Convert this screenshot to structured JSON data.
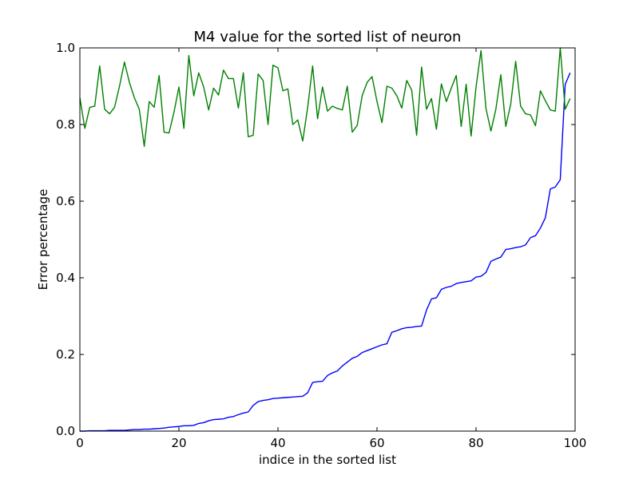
{
  "chart_data": {
    "type": "line",
    "title": "M4 value for the sorted list of neuron",
    "xlabel": "indice in the sorted list",
    "ylabel": "Error percentage",
    "xlim": [
      0,
      100
    ],
    "ylim": [
      0.0,
      1.0
    ],
    "xticks": [
      "0",
      "20",
      "40",
      "60",
      "80",
      "100"
    ],
    "yticks": [
      "0.0",
      "0.2",
      "0.4",
      "0.6",
      "0.8",
      "1.0"
    ],
    "grid": false,
    "legend": "none",
    "series": [
      {
        "color": "#0000ff",
        "x": [
          0,
          1,
          2,
          3,
          4,
          5,
          6,
          7,
          8,
          9,
          10,
          11,
          12,
          13,
          14,
          15,
          16,
          17,
          18,
          19,
          20,
          21,
          22,
          23,
          24,
          25,
          26,
          27,
          28,
          29,
          30,
          31,
          32,
          33,
          34,
          35,
          36,
          37,
          38,
          39,
          40,
          41,
          42,
          43,
          44,
          45,
          46,
          47,
          48,
          49,
          50,
          51,
          52,
          53,
          54,
          55,
          56,
          57,
          58,
          59,
          60,
          61,
          62,
          63,
          64,
          65,
          66,
          67,
          68,
          69,
          70,
          71,
          72,
          73,
          74,
          75,
          76,
          77,
          78,
          79,
          80,
          81,
          82,
          83,
          84,
          85,
          86,
          87,
          88,
          89,
          90,
          91,
          92,
          93,
          94,
          95,
          96,
          97,
          98,
          99
        ],
        "values": [
          0.0,
          0.0,
          0.001,
          0.001,
          0.001,
          0.001,
          0.002,
          0.002,
          0.002,
          0.002,
          0.003,
          0.004,
          0.004,
          0.005,
          0.005,
          0.006,
          0.007,
          0.008,
          0.01,
          0.011,
          0.012,
          0.014,
          0.014,
          0.015,
          0.02,
          0.022,
          0.027,
          0.03,
          0.031,
          0.032,
          0.036,
          0.038,
          0.043,
          0.047,
          0.05,
          0.067,
          0.077,
          0.08,
          0.082,
          0.085,
          0.086,
          0.087,
          0.088,
          0.089,
          0.09,
          0.091,
          0.1,
          0.127,
          0.129,
          0.13,
          0.145,
          0.152,
          0.157,
          0.17,
          0.18,
          0.19,
          0.195,
          0.205,
          0.21,
          0.215,
          0.22,
          0.225,
          0.228,
          0.258,
          0.262,
          0.267,
          0.27,
          0.271,
          0.273,
          0.274,
          0.316,
          0.345,
          0.348,
          0.37,
          0.375,
          0.378,
          0.385,
          0.388,
          0.39,
          0.392,
          0.402,
          0.404,
          0.414,
          0.443,
          0.449,
          0.454,
          0.474,
          0.476,
          0.479,
          0.481,
          0.486,
          0.505,
          0.51,
          0.53,
          0.557,
          0.632,
          0.637,
          0.656,
          0.905,
          0.935
        ]
      },
      {
        "color": "#008000",
        "x": [
          0,
          1,
          2,
          3,
          4,
          5,
          6,
          7,
          8,
          9,
          10,
          11,
          12,
          13,
          14,
          15,
          16,
          17,
          18,
          19,
          20,
          21,
          22,
          23,
          24,
          25,
          26,
          27,
          28,
          29,
          30,
          31,
          32,
          33,
          34,
          35,
          36,
          37,
          38,
          39,
          40,
          41,
          42,
          43,
          44,
          45,
          46,
          47,
          48,
          49,
          50,
          51,
          52,
          53,
          54,
          55,
          56,
          57,
          58,
          59,
          60,
          61,
          62,
          63,
          64,
          65,
          66,
          67,
          68,
          69,
          70,
          71,
          72,
          73,
          74,
          75,
          76,
          77,
          78,
          79,
          80,
          81,
          82,
          83,
          84,
          85,
          86,
          87,
          88,
          89,
          90,
          91,
          92,
          93,
          94,
          95,
          96,
          97,
          98,
          99
        ],
        "values": [
          0.87,
          0.79,
          0.845,
          0.848,
          0.953,
          0.84,
          0.828,
          0.845,
          0.9,
          0.963,
          0.91,
          0.87,
          0.84,
          0.743,
          0.86,
          0.845,
          0.928,
          0.78,
          0.778,
          0.832,
          0.898,
          0.79,
          0.98,
          0.875,
          0.935,
          0.898,
          0.838,
          0.895,
          0.877,
          0.942,
          0.92,
          0.92,
          0.843,
          0.935,
          0.768,
          0.772,
          0.932,
          0.915,
          0.8,
          0.955,
          0.948,
          0.888,
          0.893,
          0.8,
          0.812,
          0.757,
          0.845,
          0.953,
          0.815,
          0.898,
          0.835,
          0.848,
          0.842,
          0.838,
          0.9,
          0.78,
          0.798,
          0.875,
          0.91,
          0.925,
          0.86,
          0.805,
          0.9,
          0.895,
          0.875,
          0.843,
          0.915,
          0.89,
          0.772,
          0.95,
          0.84,
          0.868,
          0.788,
          0.906,
          0.86,
          0.895,
          0.928,
          0.795,
          0.905,
          0.77,
          0.898,
          0.993,
          0.842,
          0.783,
          0.84,
          0.93,
          0.795,
          0.853,
          0.965,
          0.848,
          0.828,
          0.825,
          0.797,
          0.888,
          0.862,
          0.838,
          0.835,
          1.0,
          0.84,
          0.868
        ]
      }
    ]
  }
}
